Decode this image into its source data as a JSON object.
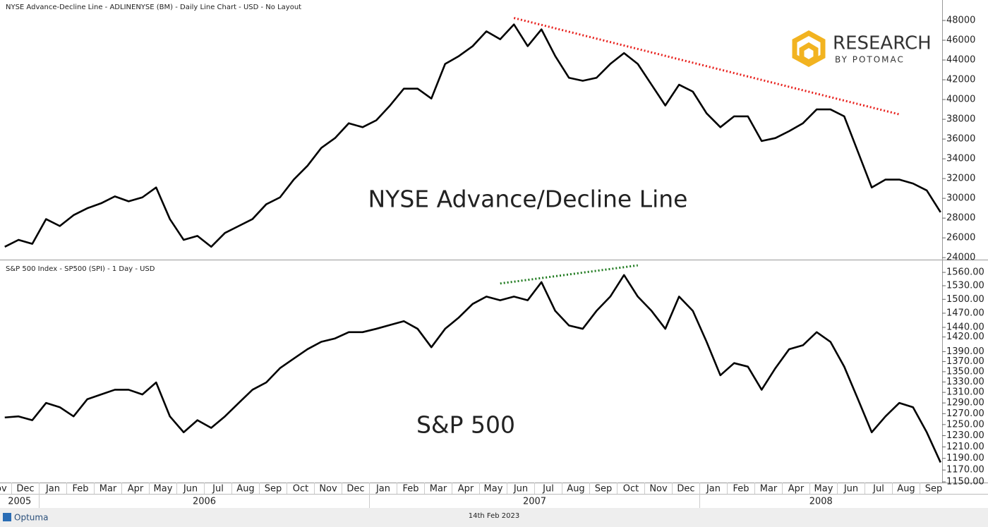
{
  "chart_data": [
    {
      "type": "line",
      "header": "NYSE Advance-Decline Line - ADLINENYSE (BM) - Daily Line Chart - USD - No Layout",
      "annotation": "NYSE Advance/Decline Line",
      "ylim": [
        23800,
        49500
      ],
      "yticks": [
        24000,
        26000,
        28000,
        30000,
        32000,
        34000,
        36000,
        38000,
        40000,
        42000,
        44000,
        46000,
        48000
      ],
      "series": [
        {
          "color": "#000000",
          "values": [
            null,
            25100,
            25800,
            25400,
            27900,
            27200,
            28300,
            29000,
            29500,
            30200,
            29700,
            30100,
            31100,
            27900,
            25800,
            26200,
            25100,
            26500,
            27200,
            27900,
            29400,
            30100,
            31900,
            33300,
            35100,
            36100,
            37600,
            37200,
            37900,
            39400,
            41100,
            41100,
            40100,
            43600,
            44400,
            45400,
            46900,
            46100,
            47600,
            45400,
            47100,
            44400,
            42200,
            41900,
            42200,
            43600,
            44700,
            43600,
            41500,
            39400,
            41500,
            40800,
            38600,
            37200,
            38300,
            38300,
            35800,
            36100,
            36800,
            37600,
            39000,
            39000,
            38300,
            34700,
            31100,
            31900,
            31900,
            31500,
            30800,
            28600
          ]
        }
      ],
      "trendline": {
        "color": "#e8221e",
        "style": "dotted",
        "values": [
          null,
          null,
          null,
          null,
          null,
          null,
          null,
          null,
          null,
          null,
          null,
          null,
          null,
          null,
          null,
          null,
          null,
          null,
          null,
          null,
          null,
          null,
          null,
          null,
          null,
          null,
          null,
          null,
          null,
          null,
          null,
          null,
          null,
          null,
          null,
          null,
          null,
          null,
          48250,
          null,
          null,
          null,
          null,
          null,
          null,
          null,
          null,
          null,
          null,
          null,
          null,
          null,
          null,
          null,
          null,
          null,
          null,
          null,
          null,
          null,
          null,
          null,
          null,
          null,
          null,
          null,
          38500,
          null,
          null,
          null
        ]
      }
    },
    {
      "type": "line",
      "header": "S&P 500 Index  - SP500 (SPI) - 1 Day - USD",
      "annotation": "S&P 500",
      "log_scale": true,
      "ylim": [
        1150,
        1586
      ],
      "yticks": [
        {
          "value": 1150,
          "label": "1150.00"
        },
        {
          "value": 1170,
          "label": "1170.00"
        },
        {
          "value": 1190,
          "label": "1190.00"
        },
        {
          "value": 1210,
          "label": "1210.00"
        },
        {
          "value": 1230,
          "label": "1230.00"
        },
        {
          "value": 1250,
          "label": "1250.00"
        },
        {
          "value": 1270,
          "label": "1270.00"
        },
        {
          "value": 1290,
          "label": "1290.00"
        },
        {
          "value": 1310,
          "label": "1310.00"
        },
        {
          "value": 1330,
          "label": "1330.00"
        },
        {
          "value": 1350,
          "label": "1350.00"
        },
        {
          "value": 1370,
          "label": "1370.00"
        },
        {
          "value": 1390,
          "label": "1390.00"
        },
        {
          "value": 1420,
          "label": "1420.00"
        },
        {
          "value": 1440,
          "label": "1440.00"
        },
        {
          "value": 1470,
          "label": "1470.00"
        },
        {
          "value": 1500,
          "label": "1500.00"
        },
        {
          "value": 1530,
          "label": "1530.00"
        },
        {
          "value": 1560,
          "label": "1560.00"
        }
      ],
      "categories": [
        "Nov",
        null,
        "Dec",
        null,
        "Jan",
        null,
        "Feb",
        null,
        "Mar",
        null,
        "Apr",
        null,
        "May",
        null,
        "Jun",
        null,
        "Jul",
        null,
        "Aug",
        null,
        "Sep",
        null,
        "Oct",
        null,
        "Nov",
        null,
        "Dec",
        null,
        "Jan",
        null,
        "Feb",
        null,
        "Mar",
        null,
        "Apr",
        null,
        "May",
        null,
        "Jun",
        null,
        "Jul",
        null,
        "Aug",
        null,
        "Sep",
        null,
        "Oct",
        null,
        "Nov",
        null,
        "Dec",
        null,
        "Jan",
        null,
        "Feb",
        null,
        "Mar",
        null,
        "Apr",
        null,
        "May",
        null,
        "Jun",
        null,
        "Jul",
        null,
        "Aug",
        null,
        "Sep",
        null
      ],
      "years": [
        "2005",
        "2006",
        "2007",
        "2008"
      ],
      "series": [
        {
          "color": "#000000",
          "values": [
            null,
            1263,
            1265,
            1258,
            1290,
            1282,
            1265,
            1297,
            1306,
            1315,
            1315,
            1306,
            1329,
            1265,
            1236,
            1258,
            1244,
            1265,
            1290,
            1315,
            1329,
            1357,
            1376,
            1395,
            1410,
            1417,
            1430,
            1430,
            1437,
            1445,
            1453,
            1437,
            1399,
            1437,
            1461,
            1490,
            1506,
            1498,
            1506,
            1498,
            1538,
            1475,
            1444,
            1437,
            1475,
            1506,
            1554,
            1506,
            1475,
            1437,
            1506,
            1475,
            1410,
            1343,
            1367,
            1360,
            1315,
            1357,
            1395,
            1403,
            1430,
            1410,
            1360,
            1297,
            1236,
            1265,
            1290,
            1282,
            1236,
            1183
          ]
        }
      ],
      "trendline": {
        "color": "#1e7a1e",
        "style": "dotted",
        "values": [
          null,
          null,
          null,
          null,
          null,
          null,
          null,
          null,
          null,
          null,
          null,
          null,
          null,
          null,
          null,
          null,
          null,
          null,
          null,
          null,
          null,
          null,
          null,
          null,
          null,
          null,
          null,
          null,
          null,
          null,
          null,
          null,
          null,
          null,
          null,
          null,
          null,
          1535,
          null,
          null,
          null,
          null,
          null,
          null,
          null,
          null,
          null,
          1576,
          null,
          null,
          null,
          null,
          null,
          null,
          null,
          null,
          null,
          null,
          null,
          null,
          null,
          null,
          null,
          null,
          null,
          null,
          null,
          null,
          null,
          null
        ]
      }
    }
  ],
  "logo": {
    "title": "RESEARCH",
    "subtitle": "BY POTOMAC"
  },
  "footer": {
    "brand": "Optuma",
    "date": "14th Feb 2023"
  }
}
